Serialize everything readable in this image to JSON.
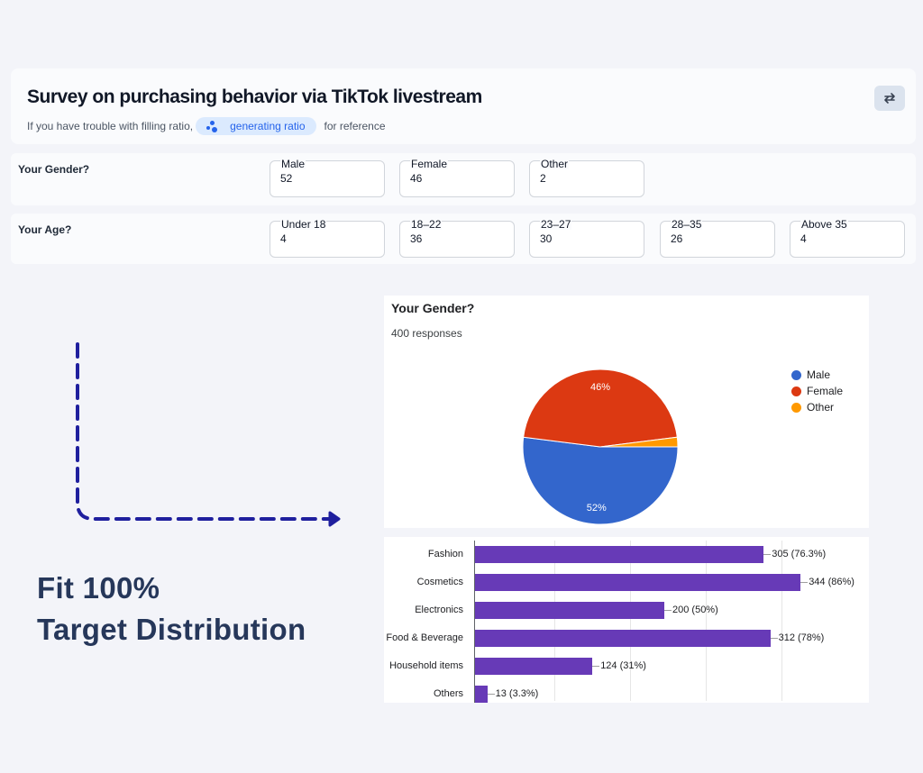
{
  "header": {
    "title": "Survey on purchasing behavior via TikTok livestream",
    "subtitle_before": "If you have trouble with filling ratio,",
    "pill_label": "generating ratio",
    "subtitle_after": "for reference"
  },
  "gender_question": {
    "label": "Your Gender?",
    "fields": [
      {
        "label": "Male",
        "value": "52"
      },
      {
        "label": "Female",
        "value": "46"
      },
      {
        "label": "Other",
        "value": "2"
      }
    ]
  },
  "age_question": {
    "label": "Your Age?",
    "fields": [
      {
        "label": "Under 18",
        "value": "4"
      },
      {
        "label": "18–22",
        "value": "36"
      },
      {
        "label": "23–27",
        "value": "30"
      },
      {
        "label": "28–35",
        "value": "26"
      },
      {
        "label": "Above 35",
        "value": "4"
      }
    ]
  },
  "promo": {
    "line1": "Fit 100%",
    "line2": "Target Distribution"
  },
  "colors": {
    "male": "#3366cc",
    "female": "#dc3912",
    "other": "#ff9900",
    "bar": "#673ab7",
    "arrow": "#1f1f9e",
    "promo_text": "#26375a"
  },
  "chart_data": [
    {
      "type": "pie",
      "title": "Your Gender?",
      "subtitle": "400 responses",
      "categories": [
        "Male",
        "Female",
        "Other"
      ],
      "values": [
        52,
        46,
        2
      ],
      "slice_labels": [
        "52%",
        "46%",
        ""
      ],
      "legend_position": "right"
    },
    {
      "type": "bar",
      "orientation": "horizontal",
      "categories": [
        "Fashion",
        "Cosmetics",
        "Electronics",
        "Food & Beverage",
        "Household items",
        "Others"
      ],
      "values": [
        305,
        344,
        200,
        312,
        124,
        13
      ],
      "data_labels": [
        "305 (76.3%)",
        "344 (86%)",
        "200 (50%)",
        "312 (78%)",
        "124 (31%)",
        "13 (3.3%)"
      ],
      "xlim": [
        0,
        400
      ],
      "grid": true
    }
  ]
}
